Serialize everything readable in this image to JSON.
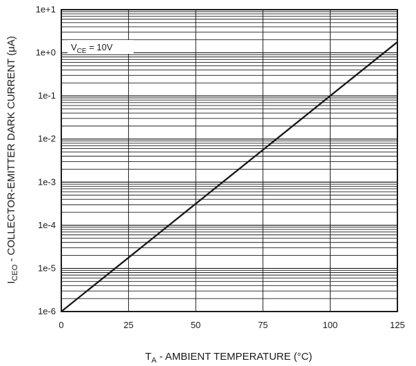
{
  "chart_data": {
    "type": "line",
    "xlabel_main": "T",
    "xlabel_sub": "A",
    "xlabel_rest": " - AMBIENT TEMPERATURE (°C)",
    "ylabel_main": "I",
    "ylabel_sub": "CEO",
    "ylabel_rest": " - COLLECTOR-EMITTER DARK CURRENT (μA)",
    "xlim": [
      0,
      125
    ],
    "ylim_exp": [
      -6,
      1
    ],
    "y_scale": "log",
    "x_ticks": [
      0,
      25,
      50,
      75,
      100,
      125
    ],
    "x_tick_labels": [
      "0",
      "25",
      "50",
      "75",
      "100",
      "125"
    ],
    "y_ticks": [
      1e-06,
      1e-05,
      0.0001,
      0.001,
      0.01,
      0.1,
      1.0,
      10.0
    ],
    "y_tick_labels": [
      "1e-6",
      "1e-5",
      "1e-4",
      "1e-3",
      "1e-2",
      "1e-1",
      "1e+0",
      "1e+1"
    ],
    "grid": true,
    "annotation": {
      "main": "V",
      "sub": "CE",
      "rest": " = 10V"
    },
    "series": [
      {
        "x": [
          0,
          25,
          50,
          75,
          100,
          125
        ],
        "y": [
          1e-06,
          1.78e-05,
          0.000316,
          0.00562,
          0.1,
          1.78
        ]
      }
    ]
  }
}
